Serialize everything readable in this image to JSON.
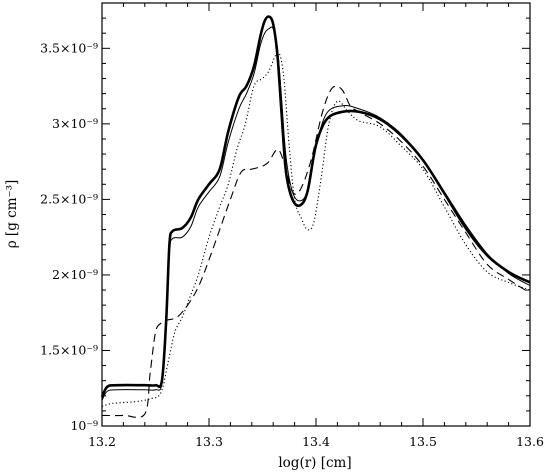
{
  "chart_data": {
    "type": "line",
    "xlabel": "log(r) [cm]",
    "ylabel": "ρ [g cm⁻³]",
    "xlim": [
      13.2,
      13.6
    ],
    "ylim": [
      1e-09,
      3.8e-09
    ],
    "grid": false,
    "legend": "none",
    "x_ticks": [
      {
        "value": 13.2,
        "label": "13.2"
      },
      {
        "value": 13.3,
        "label": "13.3"
      },
      {
        "value": 13.4,
        "label": "13.4"
      },
      {
        "value": 13.5,
        "label": "13.5"
      },
      {
        "value": 13.6,
        "label": "13.6"
      }
    ],
    "y_ticks": [
      {
        "value": 1e-09,
        "label": "10⁻⁹"
      },
      {
        "value": 1.5e-09,
        "label": "1.5×10⁻⁹"
      },
      {
        "value": 2e-09,
        "label": "2×10⁻⁹"
      },
      {
        "value": 2.5e-09,
        "label": "2.5×10⁻⁹"
      },
      {
        "value": 3e-09,
        "label": "3×10⁻⁹"
      },
      {
        "value": 3.5e-09,
        "label": "3.5×10⁻⁹"
      }
    ],
    "series": [
      {
        "style": "thick-solid",
        "x": [
          13.2,
          13.205,
          13.215,
          13.24,
          13.25,
          13.256,
          13.26,
          13.263,
          13.266,
          13.275,
          13.283,
          13.29,
          13.3,
          13.31,
          13.318,
          13.328,
          13.335,
          13.342,
          13.348,
          13.352,
          13.356,
          13.36,
          13.364,
          13.368,
          13.372,
          13.378,
          13.385,
          13.392,
          13.4,
          13.41,
          13.425,
          13.44,
          13.46,
          13.48,
          13.5,
          13.52,
          13.54,
          13.56,
          13.58,
          13.6
        ],
        "y": [
          1.19,
          1.26,
          1.27,
          1.27,
          1.27,
          1.3,
          1.7,
          2.2,
          2.29,
          2.31,
          2.38,
          2.5,
          2.6,
          2.7,
          2.95,
          3.18,
          3.25,
          3.38,
          3.58,
          3.68,
          3.71,
          3.66,
          3.45,
          3.05,
          2.68,
          2.5,
          2.46,
          2.55,
          2.86,
          3.03,
          3.08,
          3.08,
          3.03,
          2.92,
          2.76,
          2.54,
          2.31,
          2.13,
          2.02,
          1.95
        ]
      },
      {
        "style": "thin-solid",
        "x": [
          13.2,
          13.205,
          13.215,
          13.24,
          13.25,
          13.256,
          13.26,
          13.263,
          13.266,
          13.275,
          13.283,
          13.29,
          13.3,
          13.31,
          13.318,
          13.328,
          13.335,
          13.342,
          13.348,
          13.352,
          13.356,
          13.36,
          13.364,
          13.368,
          13.372,
          13.378,
          13.385,
          13.392,
          13.4,
          13.41,
          13.425,
          13.44,
          13.46,
          13.48,
          13.5,
          13.52,
          13.54,
          13.56,
          13.58,
          13.6
        ],
        "y": [
          1.17,
          1.23,
          1.24,
          1.24,
          1.24,
          1.28,
          1.65,
          2.15,
          2.24,
          2.25,
          2.32,
          2.45,
          2.55,
          2.65,
          2.88,
          3.1,
          3.2,
          3.33,
          3.52,
          3.6,
          3.63,
          3.63,
          3.5,
          3.15,
          2.78,
          2.55,
          2.49,
          2.56,
          2.85,
          3.07,
          3.12,
          3.1,
          3.04,
          2.93,
          2.76,
          2.55,
          2.33,
          2.14,
          2.01,
          1.93
        ]
      },
      {
        "style": "dotted",
        "x": [
          13.2,
          13.21,
          13.23,
          13.245,
          13.255,
          13.262,
          13.268,
          13.275,
          13.282,
          13.29,
          13.3,
          13.31,
          13.318,
          13.326,
          13.334,
          13.342,
          13.35,
          13.356,
          13.362,
          13.366,
          13.37,
          13.375,
          13.38,
          13.386,
          13.392,
          13.398,
          13.405,
          13.412,
          13.42,
          13.43,
          13.44,
          13.46,
          13.48,
          13.5,
          13.52,
          13.54,
          13.56,
          13.58,
          13.6
        ],
        "y": [
          1.13,
          1.15,
          1.16,
          1.18,
          1.22,
          1.43,
          1.62,
          1.72,
          1.85,
          2.0,
          2.25,
          2.45,
          2.6,
          2.83,
          3.0,
          3.25,
          3.3,
          3.35,
          3.45,
          3.46,
          3.3,
          2.85,
          2.5,
          2.38,
          2.3,
          2.35,
          2.65,
          3.0,
          3.15,
          3.08,
          3.02,
          2.98,
          2.85,
          2.7,
          2.45,
          2.2,
          2.02,
          1.95,
          1.9
        ]
      },
      {
        "style": "dashed",
        "x": [
          13.2,
          13.22,
          13.24,
          13.245,
          13.25,
          13.255,
          13.26,
          13.27,
          13.28,
          13.29,
          13.3,
          13.31,
          13.32,
          13.33,
          13.34,
          13.35,
          13.356,
          13.362,
          13.366,
          13.372,
          13.378,
          13.385,
          13.395,
          13.405,
          13.412,
          13.418,
          13.425,
          13.432,
          13.44,
          13.46,
          13.48,
          13.5,
          13.52,
          13.54,
          13.56,
          13.58,
          13.6
        ],
        "y": [
          1.07,
          1.07,
          1.08,
          1.35,
          1.62,
          1.68,
          1.7,
          1.72,
          1.8,
          1.92,
          2.1,
          2.3,
          2.5,
          2.68,
          2.7,
          2.72,
          2.75,
          2.82,
          2.82,
          2.7,
          2.55,
          2.56,
          2.75,
          3.05,
          3.2,
          3.25,
          3.22,
          3.12,
          3.08,
          3.0,
          2.88,
          2.72,
          2.5,
          2.28,
          2.07,
          1.97,
          1.88
        ]
      }
    ]
  }
}
